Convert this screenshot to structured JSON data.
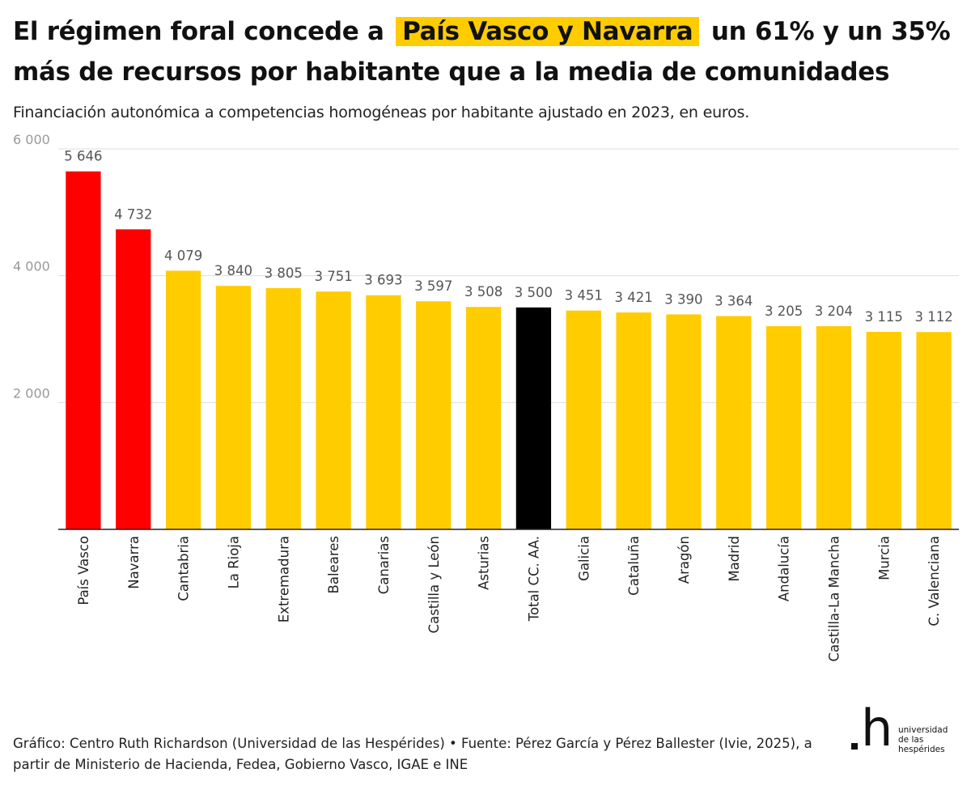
{
  "title": {
    "part1": "El régimen foral concede a",
    "highlight": "País Vasco y Navarra",
    "part2": "un 61% y un 35% más de recursos por habitante que a la media de comunidades"
  },
  "subtitle": "Financiación autonómica a competencias homogéneas por habitante ajustado en 2023, en euros.",
  "footer": "Gráfico: Centro Ruth Richardson (Universidad de las Hespérides) • Fuente: Pérez García y Pérez Ballester (Ivie, 2025), a partir de Ministerio de Hacienda, Fedea, Gobierno Vasco, IGAE e INE",
  "logo": {
    "mark": "h",
    "line1": "universidad",
    "line2": "de las",
    "line3": "hespérides"
  },
  "colors": {
    "foral": "#ff0000",
    "regular": "#ffcc00",
    "total": "#000000",
    "highlight": "#ffcc00"
  },
  "chart_data": {
    "type": "bar",
    "categories": [
      "País Vasco",
      "Navarra",
      "Cantabria",
      "La Rioja",
      "Extremadura",
      "Baleares",
      "Canarias",
      "Castilla y León",
      "Asturias",
      "Total CC. AA.",
      "Galicia",
      "Cataluña",
      "Aragón",
      "Madrid",
      "Andalucía",
      "Castilla-La Mancha",
      "Murcia",
      "C. Valenciana"
    ],
    "values": [
      5646,
      4732,
      4079,
      3840,
      3805,
      3751,
      3693,
      3597,
      3508,
      3500,
      3451,
      3421,
      3390,
      3364,
      3205,
      3204,
      3115,
      3112
    ],
    "value_labels": [
      "5 646",
      "4 732",
      "4 079",
      "3 840",
      "3 805",
      "3 751",
      "3 693",
      "3 597",
      "3 508",
      "3 500",
      "3 451",
      "3 421",
      "3 390",
      "3 364",
      "3 205",
      "3 204",
      "3 115",
      "3 112"
    ],
    "bar_colors": [
      "foral",
      "foral",
      "regular",
      "regular",
      "regular",
      "regular",
      "regular",
      "regular",
      "regular",
      "total",
      "regular",
      "regular",
      "regular",
      "regular",
      "regular",
      "regular",
      "regular",
      "regular"
    ],
    "yticks": [
      2000,
      4000,
      6000
    ],
    "ytick_labels": [
      "2 000",
      "4 000",
      "6 000"
    ],
    "ylim": [
      0,
      6000
    ],
    "grid": true,
    "xlabel": "",
    "ylabel": ""
  }
}
